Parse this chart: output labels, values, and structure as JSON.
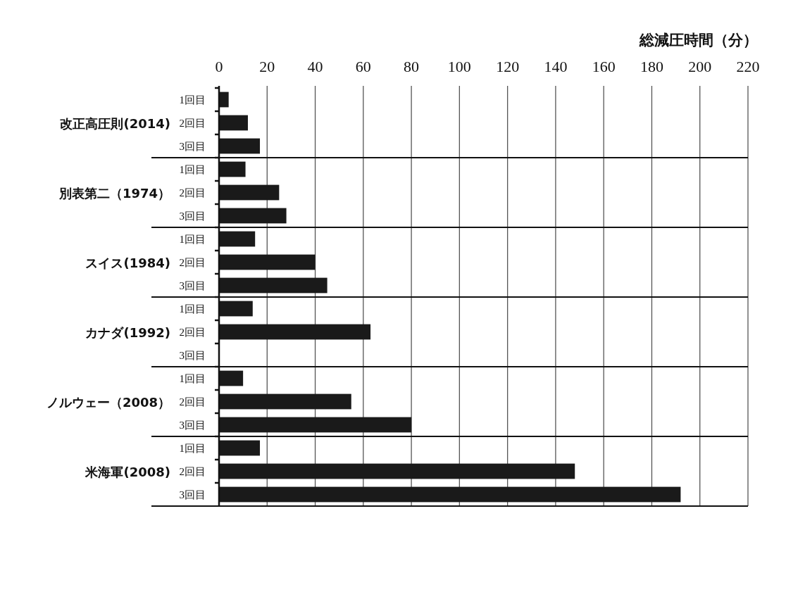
{
  "chart_data": {
    "type": "bar",
    "orientation": "horizontal",
    "xlabel": "総減圧時間（分）",
    "categories": [
      "改正高圧則(2014)",
      "別表第二（1974）",
      "スイス(1984)",
      "カナダ(1992)",
      "ノルウェー（2008）",
      "米海軍(2008)"
    ],
    "series": [
      {
        "name": "1回目",
        "color": "#1a1a1a",
        "values": [
          4,
          11,
          15,
          14,
          10,
          17
        ]
      },
      {
        "name": "2回目",
        "color": "#1a1a1a",
        "values": [
          12,
          25,
          40,
          63,
          55,
          148
        ]
      },
      {
        "name": "3回目",
        "color": "#1a1a1a",
        "values": [
          17,
          28,
          45,
          null,
          80,
          192
        ]
      }
    ],
    "xlim": [
      0,
      220
    ],
    "xticks": [
      0,
      20,
      40,
      60,
      80,
      100,
      120,
      140,
      160,
      180,
      200,
      220
    ],
    "grid": "x"
  }
}
